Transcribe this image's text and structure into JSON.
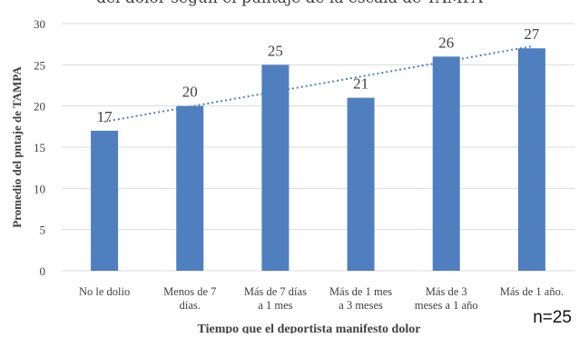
{
  "chart_data": {
    "type": "bar",
    "title": "del dolor según el puntaje de la escala de TAMPA",
    "xlabel": "Tiempo que el deportista manifesto dolor",
    "ylabel": "Promedio del pntaje de TAMPA",
    "ylim": [
      0,
      30
    ],
    "yticks": [
      0,
      5,
      10,
      15,
      20,
      25,
      30
    ],
    "grid": true,
    "categories": [
      [
        "No le dolio"
      ],
      [
        "Menos de 7",
        "días."
      ],
      [
        "Más de 7 días",
        "a 1 mes"
      ],
      [
        "Más de 1 mes",
        "a 3 meses"
      ],
      [
        "Más de 3",
        "meses a 1 año"
      ],
      [
        "Más de 1 año."
      ]
    ],
    "values": [
      17,
      20,
      25,
      21,
      26,
      27
    ],
    "data_labels": [
      "17",
      "20",
      "25",
      "21",
      "26",
      "27"
    ],
    "trendline": "linear, dotted",
    "bar_color": "#4f7fbf",
    "trend_color": "#4f7fbf",
    "annotation": "n=25"
  }
}
